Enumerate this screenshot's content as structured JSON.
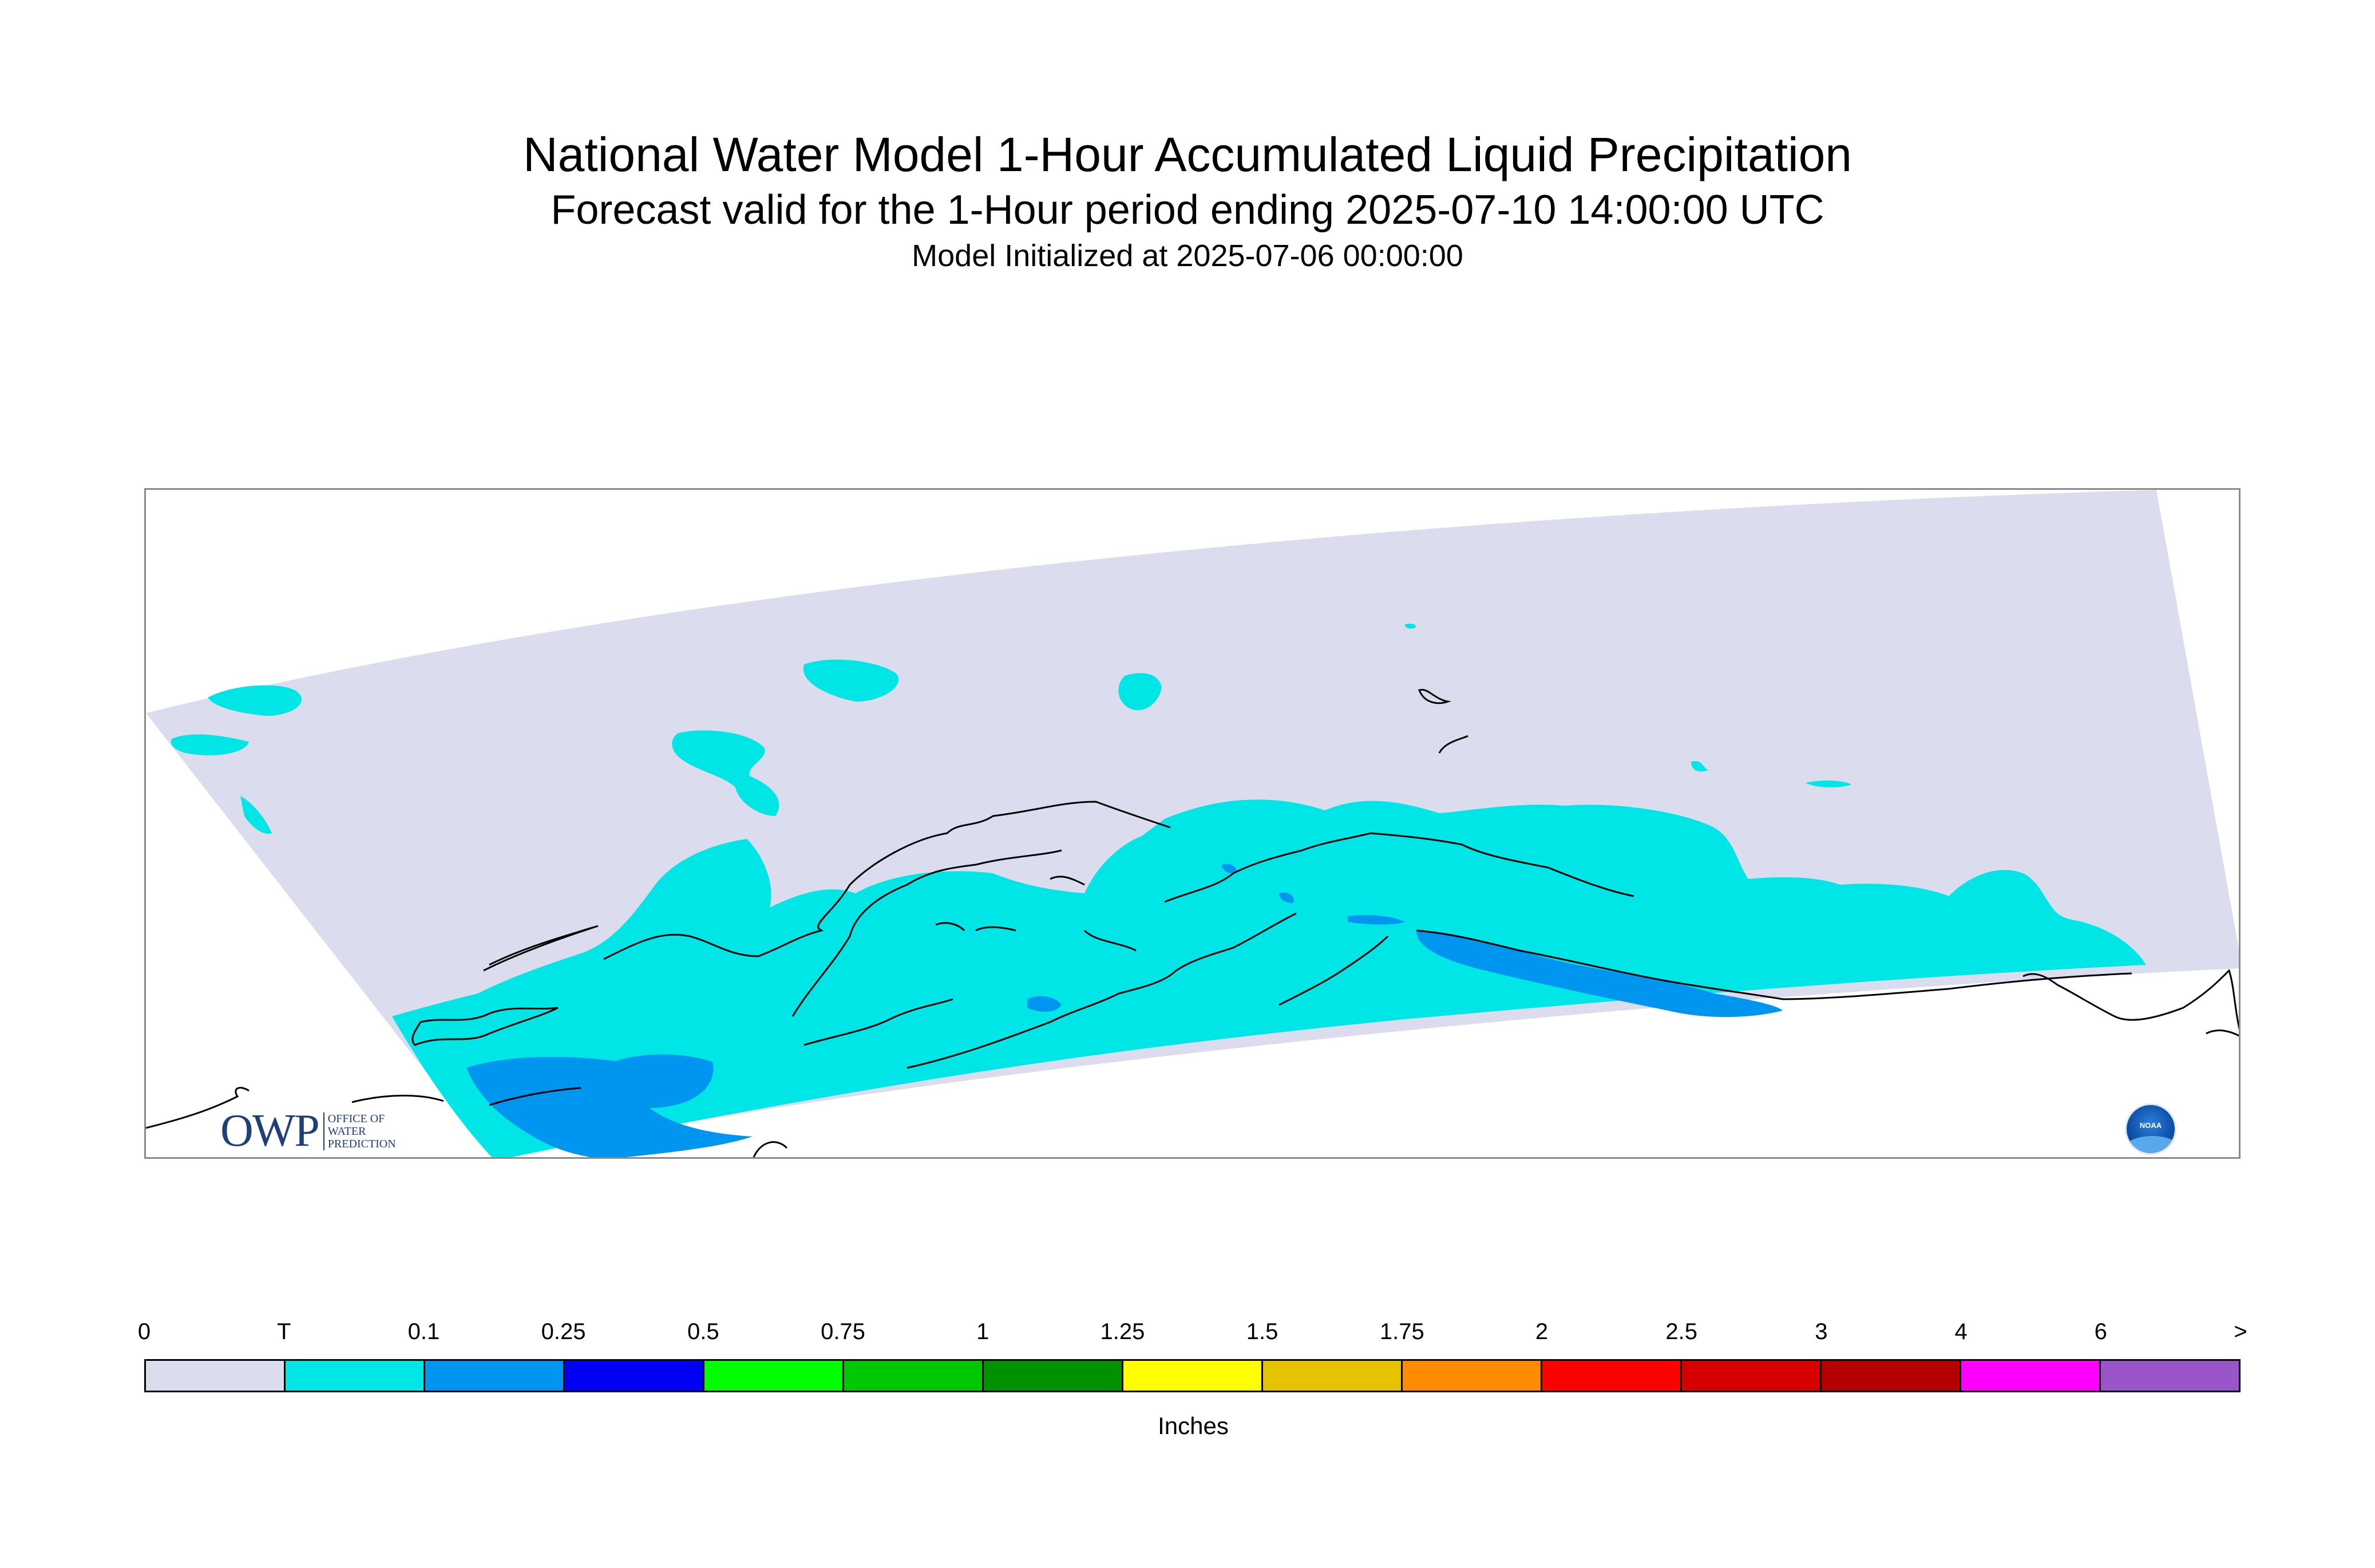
{
  "header": {
    "title": "National Water Model 1-Hour Accumulated Liquid Precipitation",
    "subtitle": "Forecast valid for the 1-Hour period ending 2025-07-10 14:00:00 UTC",
    "init": "Model Initialized at 2025-07-06 00:00:00"
  },
  "map": {
    "region_colors": {
      "zero": "#dcdcef",
      "trace": "#00e5e5",
      "light": "#0096f0",
      "coastline": "#000000",
      "frame": "#8a8a8a"
    }
  },
  "logos": {
    "owp_mark": "OWP",
    "owp_text": "OFFICE OF WATER PREDICTION",
    "noaa_text": "NOAA"
  },
  "legend": {
    "ticks": [
      "0",
      "T",
      "0.1",
      "0.25",
      "0.5",
      "0.75",
      "1",
      "1.25",
      "1.5",
      "1.75",
      "2",
      "2.5",
      "3",
      "4",
      "6",
      ">"
    ],
    "colors": [
      "#dcdcef",
      "#00e5e5",
      "#0096f0",
      "#0000f5",
      "#00ff00",
      "#00c800",
      "#009100",
      "#ffff00",
      "#e6c300",
      "#ff8c00",
      "#ff0000",
      "#d70000",
      "#b40000",
      "#ff00ff",
      "#9955c9"
    ],
    "units": "Inches"
  }
}
